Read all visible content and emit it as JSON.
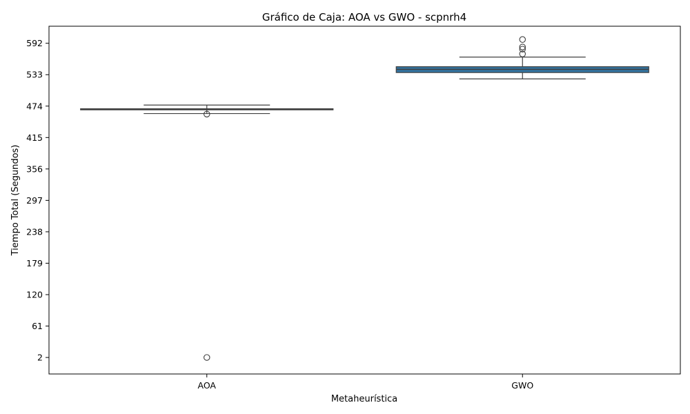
{
  "chart_data": {
    "type": "box",
    "title": "Gráfico de Caja: AOA vs GWO - scpnrh4",
    "xlabel": "Metaheurística",
    "ylabel": "Tiempo Total (Segundos)",
    "categories": [
      "AOA",
      "GWO"
    ],
    "yticks": [
      2,
      61,
      120,
      179,
      238,
      297,
      356,
      415,
      474,
      533,
      592
    ],
    "ylim": [
      -29,
      624
    ],
    "box_color": "#3274a1",
    "line_color": "#3f3f3f",
    "boxes": [
      {
        "name": "AOA",
        "whisker_low": 460,
        "q1": 467,
        "median": 468,
        "q3": 469,
        "whisker_high": 476,
        "outliers": [
          459,
          2
        ]
      },
      {
        "name": "GWO",
        "whisker_low": 525,
        "q1": 537,
        "median": 543,
        "q3": 548,
        "whisker_high": 566,
        "outliers": [
          572,
          581,
          585,
          599
        ]
      }
    ]
  }
}
